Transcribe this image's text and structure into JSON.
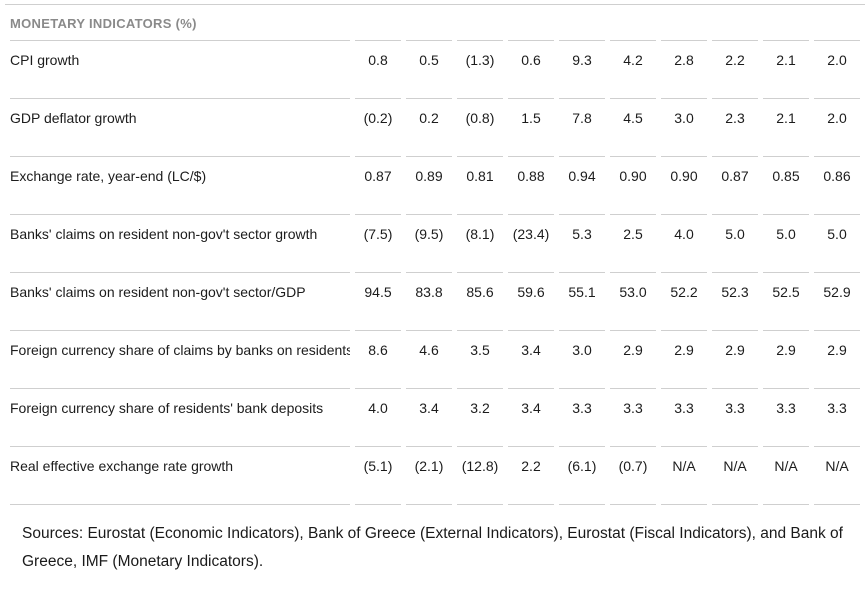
{
  "table": {
    "title": "MONETARY INDICATORS (%)",
    "columns_count": 10,
    "rows": [
      {
        "label": "CPI growth",
        "values": [
          "0.8",
          "0.5",
          "(1.3)",
          "0.6",
          "9.3",
          "4.2",
          "2.8",
          "2.2",
          "2.1",
          "2.0"
        ]
      },
      {
        "label": "GDP deflator growth",
        "values": [
          "(0.2)",
          "0.2",
          "(0.8)",
          "1.5",
          "7.8",
          "4.5",
          "3.0",
          "2.3",
          "2.1",
          "2.0"
        ]
      },
      {
        "label": "Exchange rate, year-end (LC/$)",
        "values": [
          "0.87",
          "0.89",
          "0.81",
          "0.88",
          "0.94",
          "0.90",
          "0.90",
          "0.87",
          "0.85",
          "0.86"
        ]
      },
      {
        "label": "Banks' claims on resident non-gov't sector growth",
        "values": [
          "(7.5)",
          "(9.5)",
          "(8.1)",
          "(23.4)",
          "5.3",
          "2.5",
          "4.0",
          "5.0",
          "5.0",
          "5.0"
        ]
      },
      {
        "label": "Banks' claims on resident non-gov't sector/GDP",
        "values": [
          "94.5",
          "83.8",
          "85.6",
          "59.6",
          "55.1",
          "53.0",
          "52.2",
          "52.3",
          "52.5",
          "52.9"
        ]
      },
      {
        "label": "Foreign currency share of claims by banks on residents",
        "values": [
          "8.6",
          "4.6",
          "3.5",
          "3.4",
          "3.0",
          "2.9",
          "2.9",
          "2.9",
          "2.9",
          "2.9"
        ]
      },
      {
        "label": "Foreign currency share of residents' bank deposits",
        "values": [
          "4.0",
          "3.4",
          "3.2",
          "3.4",
          "3.3",
          "3.3",
          "3.3",
          "3.3",
          "3.3",
          "3.3"
        ]
      },
      {
        "label": "Real effective exchange rate growth",
        "values": [
          "(5.1)",
          "(2.1)",
          "(12.8)",
          "2.2",
          "(6.1)",
          "(0.7)",
          "N/A",
          "N/A",
          "N/A",
          "N/A"
        ]
      }
    ]
  },
  "footer": {
    "sources": "Sources: Eurostat (Economic Indicators), Bank of Greece (External Indicators), Eurostat (Fiscal Indicators), and Bank of Greece, IMF (Monetary Indicators)."
  },
  "colors": {
    "title_text": "#8a8a8a",
    "body_text": "#1c1c1c",
    "border": "#cfcfcf",
    "background": "#ffffff"
  }
}
